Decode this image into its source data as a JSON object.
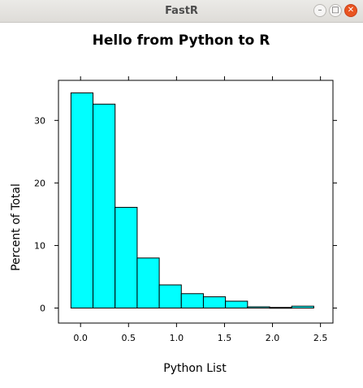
{
  "window": {
    "title": "FastR",
    "buttons": {
      "minimize_icon": "minimize-icon",
      "maximize_icon": "maximize-icon",
      "close_icon": "close-icon"
    }
  },
  "colors": {
    "bar_fill": "#00ffff",
    "bar_stroke": "#000000",
    "titlebar_bg": "#dedcd8",
    "close_button": "#e95420"
  },
  "chart_data": {
    "type": "bar",
    "title": "Hello from Python to R",
    "xlabel": "Python List",
    "ylabel": "Percent of Total",
    "bins": [
      {
        "start": -0.1,
        "end": 0.13,
        "value": 34.4
      },
      {
        "start": 0.13,
        "end": 0.36,
        "value": 32.6
      },
      {
        "start": 0.36,
        "end": 0.59,
        "value": 16.1
      },
      {
        "start": 0.59,
        "end": 0.82,
        "value": 8.0
      },
      {
        "start": 0.82,
        "end": 1.05,
        "value": 3.7
      },
      {
        "start": 1.05,
        "end": 1.28,
        "value": 2.3
      },
      {
        "start": 1.28,
        "end": 1.51,
        "value": 1.8
      },
      {
        "start": 1.51,
        "end": 1.74,
        "value": 1.1
      },
      {
        "start": 1.74,
        "end": 1.97,
        "value": 0.2
      },
      {
        "start": 1.97,
        "end": 2.2,
        "value": 0.1
      },
      {
        "start": 2.2,
        "end": 2.43,
        "value": 0.3
      }
    ],
    "xlim": [
      -0.23,
      2.63
    ],
    "ylim": [
      -2.4,
      36.4
    ],
    "xticks": [
      0.0,
      0.5,
      1.0,
      1.5,
      2.0,
      2.5
    ],
    "xtick_labels": [
      "0.0",
      "0.5",
      "1.0",
      "1.5",
      "2.0",
      "2.5"
    ],
    "yticks": [
      0,
      10,
      20,
      30
    ],
    "ytick_labels": [
      "0",
      "10",
      "20",
      "30"
    ],
    "grid": false,
    "legend": "none"
  }
}
